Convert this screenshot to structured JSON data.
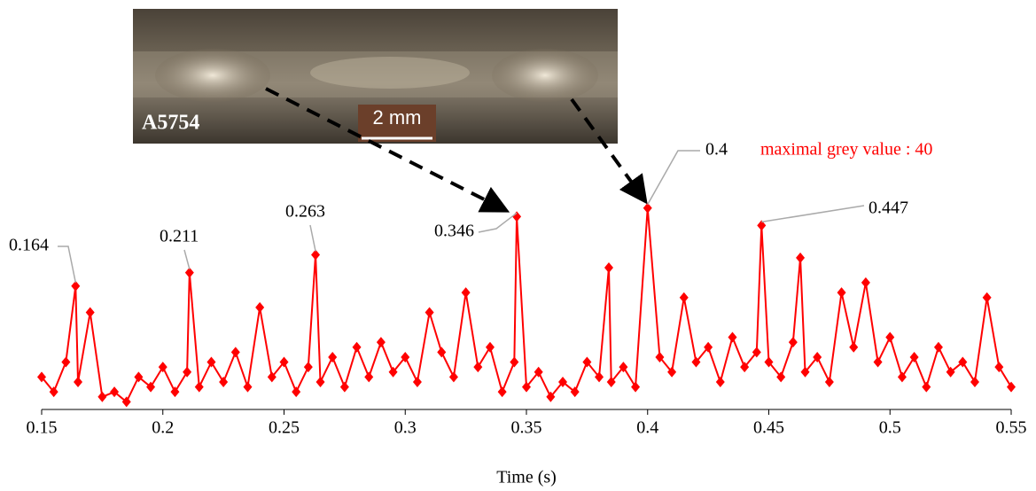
{
  "chart_data": {
    "type": "line",
    "x_label": "Time (s)",
    "inset_label": "A5754",
    "scale_bar": "2 mm",
    "annotation": "maximal grey value : 40",
    "x": [
      0.15,
      0.155,
      0.16,
      0.164,
      0.165,
      0.17,
      0.175,
      0.18,
      0.185,
      0.19,
      0.195,
      0.2,
      0.205,
      0.21,
      0.211,
      0.215,
      0.22,
      0.225,
      0.23,
      0.235,
      0.24,
      0.245,
      0.25,
      0.255,
      0.26,
      0.263,
      0.265,
      0.27,
      0.275,
      0.28,
      0.285,
      0.29,
      0.295,
      0.3,
      0.305,
      0.31,
      0.315,
      0.32,
      0.325,
      0.33,
      0.335,
      0.34,
      0.345,
      0.346,
      0.35,
      0.355,
      0.36,
      0.365,
      0.37,
      0.375,
      0.38,
      0.384,
      0.385,
      0.39,
      0.395,
      0.4,
      0.405,
      0.41,
      0.415,
      0.42,
      0.425,
      0.43,
      0.435,
      0.44,
      0.445,
      0.447,
      0.45,
      0.455,
      0.46,
      0.463,
      0.465,
      0.47,
      0.475,
      0.48,
      0.485,
      0.49,
      0.495,
      0.5,
      0.505,
      0.51,
      0.515,
      0.52,
      0.525,
      0.53,
      0.535,
      0.54,
      0.545,
      0.55
    ],
    "series": [
      {
        "color": "#ff0000",
        "values": [
          6,
          3,
          9,
          24.3,
          5,
          19,
          2,
          3,
          1,
          6,
          4,
          8,
          3,
          7,
          27,
          4,
          9,
          5,
          11,
          4,
          20,
          6,
          9,
          3,
          8,
          30.6,
          5,
          10,
          4,
          12,
          6,
          13,
          7,
          10,
          5,
          19,
          11,
          6,
          23,
          8,
          12,
          3,
          9,
          38.3,
          4,
          7,
          2,
          5,
          3,
          9,
          6,
          28,
          5,
          8,
          4,
          40,
          10,
          7,
          22,
          9,
          12,
          5,
          14,
          8,
          11,
          36.5,
          9,
          6,
          13,
          30,
          7,
          10,
          5,
          23,
          12,
          25,
          9,
          14,
          6,
          10,
          4,
          12,
          7,
          9,
          5,
          22,
          8,
          4
        ]
      }
    ],
    "peaks": [
      {
        "x": 0.164,
        "value": 24.3
      },
      {
        "x": 0.211,
        "value": 27
      },
      {
        "x": 0.263,
        "value": 30.6
      },
      {
        "x": 0.346,
        "value": 38.3
      },
      {
        "x": 0.4,
        "value": 40
      },
      {
        "x": 0.447,
        "value": 36.5
      }
    ],
    "xlim": [
      0.15,
      0.55
    ],
    "xticks": [
      0.15,
      0.2,
      0.25,
      0.3,
      0.35,
      0.4,
      0.45,
      0.5,
      0.55
    ],
    "ylim": [
      0,
      40.5
    ]
  }
}
